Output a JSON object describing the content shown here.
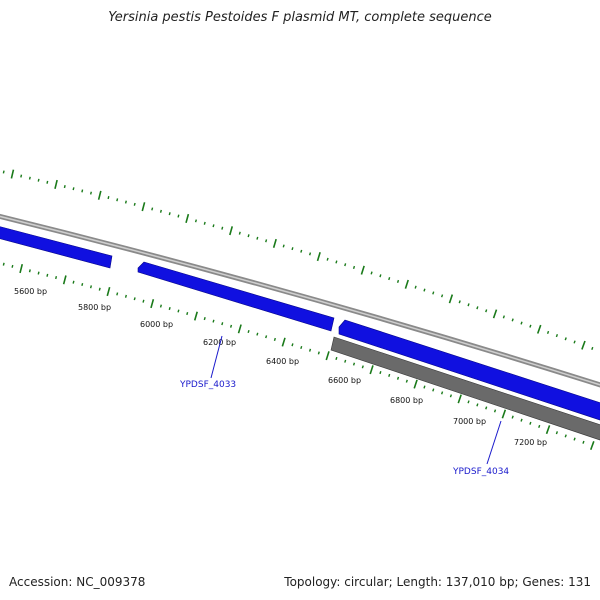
{
  "title": "Yersinia pestis Pestoides F plasmid MT, complete sequence",
  "footer": {
    "accession": "Accession: NC_009378",
    "summary": "Topology: circular; Length: 137,010 bp; Genes: 131"
  },
  "scale_labels": [
    "5600 bp",
    "5800 bp",
    "6000 bp",
    "6200 bp",
    "6400 bp",
    "6600 bp",
    "6800 bp",
    "7000 bp",
    "7200 bp"
  ],
  "gene_labels": [
    "YPDSF_4033",
    "YPDSF_4034"
  ],
  "colors": {
    "forward_gene": "#1010e0",
    "reverse_gene": "#6a6a6a",
    "backbone": "#8a8a8a",
    "tick": "#1a7a1a",
    "label": "#1a1acc"
  }
}
